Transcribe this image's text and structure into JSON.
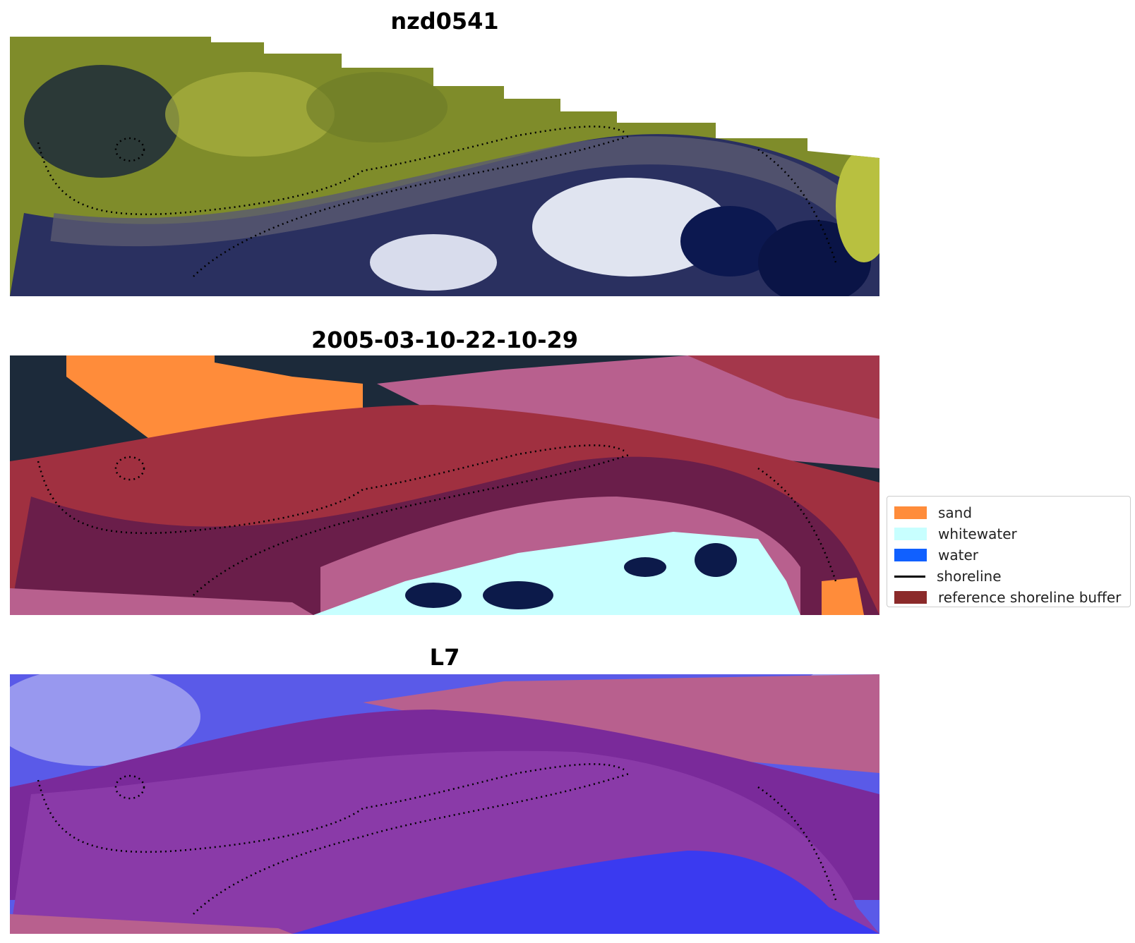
{
  "panels": [
    {
      "title": "nzd0541",
      "kind": "rgb"
    },
    {
      "title": "2005-03-10-22-10-29",
      "kind": "classified"
    },
    {
      "title": "L7",
      "kind": "index"
    }
  ],
  "legend": {
    "items": [
      {
        "label": "sand",
        "color": "#ff8c3a",
        "type": "patch"
      },
      {
        "label": "whitewater",
        "color": "#c8ffff",
        "type": "patch"
      },
      {
        "label": "water",
        "color": "#1060ff",
        "type": "patch"
      },
      {
        "label": "shoreline",
        "color": "#000000",
        "type": "line"
      },
      {
        "label": "reference shoreline buffer",
        "color": "#8b2a2a",
        "type": "patch"
      }
    ]
  },
  "colors": {
    "vegetation": "#8a9a2a",
    "dark_water": "#0c1a4a",
    "buffer": "#a03040",
    "pink_band": "#b8608e",
    "purple_index": "#7a2a9a",
    "blue_index": "#3a3af0"
  }
}
